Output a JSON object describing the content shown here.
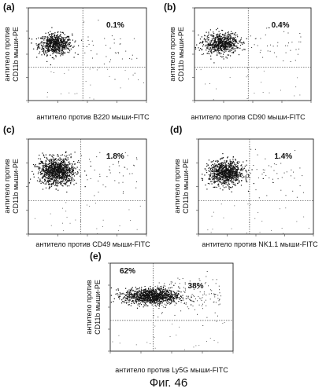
{
  "figure_caption": "Фиг. 46",
  "chart_data": [
    {
      "type": "scatter",
      "panel_label": "(a)",
      "xlabel": "антитело против B220 мыши-FITC",
      "ylabel_line1": "антитело против",
      "ylabel_line2": "CD11b мыши-PE",
      "annotations": [
        "0.1%"
      ],
      "x_scale": "log",
      "y_scale": "log",
      "xlim": [
        1,
        10000
      ],
      "ylim": [
        1,
        10000
      ],
      "gate": {
        "x": 70,
        "y": 28
      },
      "quadrants": [
        {
          "label": "upper-right",
          "percent": 0.1
        }
      ],
      "population": {
        "center_x": 8,
        "center_y": 280,
        "spread_x_decades": 0.28,
        "spread_y_decades": 0.22,
        "n_points": 700
      },
      "grid": false
    },
    {
      "type": "scatter",
      "panel_label": "(b)",
      "xlabel": "антитело против CD90 мыши-FITC",
      "ylabel_line1": "антитело против",
      "ylabel_line2": "CD11b мыши-PE",
      "annotations": [
        "0.4%"
      ],
      "x_scale": "log",
      "y_scale": "log",
      "xlim": [
        1,
        10000
      ],
      "ylim": [
        1,
        10000
      ],
      "gate": {
        "x": 70,
        "y": 28
      },
      "quadrants": [
        {
          "label": "upper-right",
          "percent": 0.4
        }
      ],
      "population": {
        "center_x": 8,
        "center_y": 300,
        "spread_x_decades": 0.3,
        "spread_y_decades": 0.22,
        "n_points": 700
      },
      "grid": false
    },
    {
      "type": "scatter",
      "panel_label": "(c)",
      "xlabel": "антитело против CD49 мыши-FITC",
      "ylabel_line1": "антитело против",
      "ylabel_line2": "CD11b мыши-PE",
      "annotations": [
        "1.8%"
      ],
      "x_scale": "log",
      "y_scale": "log",
      "xlim": [
        1,
        10000
      ],
      "ylim": [
        1,
        10000
      ],
      "gate": {
        "x": 60,
        "y": 25
      },
      "quadrants": [
        {
          "label": "upper-right",
          "percent": 1.8
        }
      ],
      "population": {
        "center_x": 9,
        "center_y": 450,
        "spread_x_decades": 0.3,
        "spread_y_decades": 0.28,
        "n_points": 1100
      },
      "grid": false
    },
    {
      "type": "scatter",
      "panel_label": "(d)",
      "xlabel": "антитело против NK1.1 мыши-FITC",
      "ylabel_line1": "антитело против",
      "ylabel_line2": "CD11b мыши-PE",
      "annotations": [
        "1.4%"
      ],
      "x_scale": "log",
      "y_scale": "log",
      "xlim": [
        1,
        10000
      ],
      "ylim": [
        1,
        10000
      ],
      "gate": {
        "x": 60,
        "y": 25
      },
      "quadrants": [
        {
          "label": "upper-right",
          "percent": 1.4
        }
      ],
      "population": {
        "center_x": 9,
        "center_y": 380,
        "spread_x_decades": 0.3,
        "spread_y_decades": 0.25,
        "n_points": 950
      },
      "grid": false
    },
    {
      "type": "scatter",
      "panel_label": "(e)",
      "xlabel": "антитело против Ly5G мыши-FITC",
      "ylabel_line1": "антитело против",
      "ylabel_line2": "CD11b мыши-PE",
      "annotations": [
        "62%",
        "38%"
      ],
      "x_scale": "log",
      "y_scale": "log",
      "xlim": [
        1,
        10000
      ],
      "ylim": [
        1,
        10000
      ],
      "gate": {
        "x": 25,
        "y": 25
      },
      "quadrants": [
        {
          "label": "upper-left",
          "percent": 62
        },
        {
          "label": "upper-right",
          "percent": 38
        }
      ],
      "population": {
        "center_x": 22,
        "center_y": 330,
        "spread_x_decades": 0.45,
        "spread_y_decades": 0.18,
        "n_points": 1100
      },
      "grid": false
    }
  ]
}
